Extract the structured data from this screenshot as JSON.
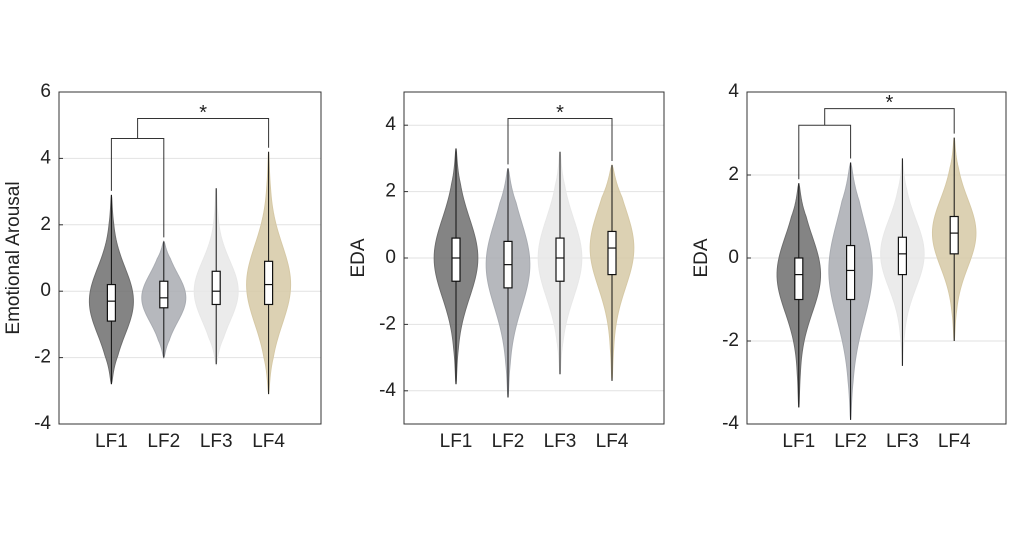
{
  "chart_data": [
    {
      "type": "violin",
      "y_label": "Emotional Arousal",
      "ylim": [
        -4,
        6
      ],
      "yticks": [
        -4,
        -2,
        0,
        2,
        4,
        6
      ],
      "grid": true,
      "categories": [
        "LF1",
        "LF2",
        "LF3",
        "LF4"
      ],
      "colors": [
        "#6e6e6e",
        "#a9acb2",
        "#e8e8e8",
        "#d6c9a6"
      ],
      "min": [
        -2.8,
        -2.0,
        -2.2,
        -3.1
      ],
      "q1": [
        -0.9,
        -0.5,
        -0.4,
        -0.4
      ],
      "median": [
        -0.3,
        -0.2,
        0.0,
        0.2
      ],
      "q3": [
        0.2,
        0.3,
        0.6,
        0.9
      ],
      "max": [
        2.9,
        1.5,
        3.1,
        4.2
      ],
      "significance": {
        "text": "*",
        "pair_y": 4.6,
        "y": 5.2,
        "groups": [
          [
            "LF1",
            "LF2"
          ],
          [
            "LF4"
          ]
        ]
      }
    },
    {
      "type": "violin",
      "y_label": "EDA",
      "ylim": [
        -5,
        5
      ],
      "yticks": [
        -4,
        -2,
        0,
        2,
        4
      ],
      "grid": true,
      "categories": [
        "LF1",
        "LF2",
        "LF3",
        "LF4"
      ],
      "colors": [
        "#6e6e6e",
        "#a9acb2",
        "#e8e8e8",
        "#d6c9a6"
      ],
      "min": [
        -3.8,
        -4.2,
        -3.5,
        -3.7
      ],
      "q1": [
        -0.7,
        -0.9,
        -0.7,
        -0.5
      ],
      "median": [
        0.0,
        -0.2,
        0.0,
        0.3
      ],
      "q3": [
        0.6,
        0.5,
        0.6,
        0.8
      ],
      "max": [
        3.3,
        2.7,
        3.2,
        2.8
      ],
      "significance": {
        "text": "*",
        "y": 4.2,
        "groups": [
          [
            "LF2"
          ],
          [
            "LF4"
          ]
        ]
      }
    },
    {
      "type": "violin",
      "y_label": "EDA",
      "ylim": [
        -4,
        4
      ],
      "yticks": [
        -4,
        -2,
        0,
        2,
        4
      ],
      "grid": true,
      "categories": [
        "LF1",
        "LF2",
        "LF3",
        "LF4"
      ],
      "colors": [
        "#6e6e6e",
        "#a9acb2",
        "#e8e8e8",
        "#d6c9a6"
      ],
      "min": [
        -3.6,
        -3.9,
        -2.6,
        -2.0
      ],
      "q1": [
        -1.0,
        -1.0,
        -0.4,
        0.1
      ],
      "median": [
        -0.4,
        -0.3,
        0.1,
        0.6
      ],
      "q3": [
        0.0,
        0.3,
        0.5,
        1.0
      ],
      "max": [
        1.8,
        2.3,
        2.4,
        2.9
      ],
      "significance": {
        "text": "*",
        "pair_y": 3.2,
        "y": 3.6,
        "groups": [
          [
            "LF1",
            "LF2"
          ],
          [
            "LF4"
          ]
        ]
      }
    }
  ]
}
